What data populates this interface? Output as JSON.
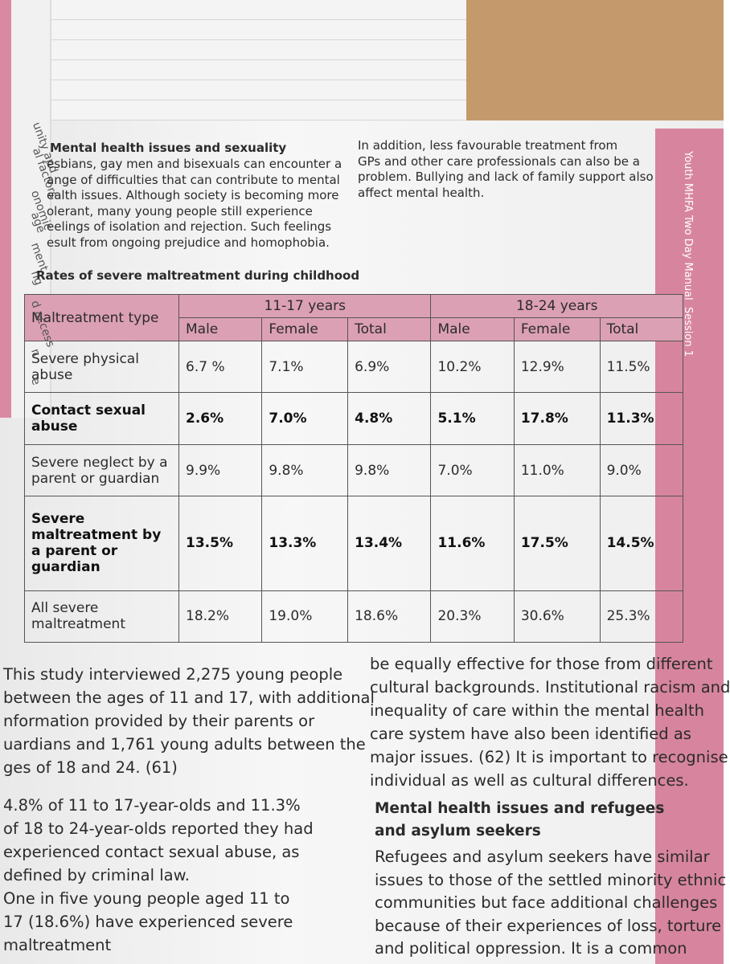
{
  "side_tab": {
    "title": "Youth MHFA Two Day Manual",
    "session": "Session 1"
  },
  "left_page": {
    "fragments": [
      "unity and",
      "al factors",
      "onomic",
      "age",
      "ment",
      "ng",
      "d access",
      "n",
      "e"
    ]
  },
  "intro": {
    "heading": "Mental health issues and sexuality",
    "left_lines": [
      "esbians, gay men and bisexuals can encounter a",
      "ange of difficulties that can contribute to mental",
      "ealth issues. Although society is becoming more",
      "olerant, many young people still experience",
      "eelings of isolation and rejection. Such feelings",
      "esult from ongoing prejudice and homophobia."
    ],
    "right_lines": [
      "In addition, less favourable treatment from",
      "GPs and other care professionals can also be a",
      "problem. Bullying and lack of family support also",
      "affect mental health."
    ]
  },
  "table": {
    "title": "Rates of severe maltreatment during childhood",
    "type_header": "Maltreatment type",
    "groups": [
      "11-17 years",
      "18-24 years"
    ],
    "columns": [
      "Male",
      "Female",
      "Total",
      "Male",
      "Female",
      "Total"
    ],
    "rows": [
      [
        "Severe physical abuse",
        "6.7 %",
        "7.1%",
        "6.9%",
        "10.2%",
        "12.9%",
        "11.5%"
      ],
      [
        "Contact sexual abuse",
        "2.6%",
        "7.0%",
        "4.8%",
        "5.1%",
        "17.8%",
        "11.3%"
      ],
      [
        "Severe neglect by a parent or guardian",
        "9.9%",
        "9.8%",
        "9.8%",
        "7.0%",
        "11.0%",
        "9.0%"
      ],
      [
        "Severe maltreatment by a parent or guardian",
        "13.5%",
        "13.3%",
        "13.4%",
        "11.6%",
        "17.5%",
        "14.5%"
      ],
      [
        "All severe maltreatment",
        "18.2%",
        "19.0%",
        "18.6%",
        "20.3%",
        "30.6%",
        "25.3%"
      ]
    ]
  },
  "body": {
    "left_paragraphs": [
      [
        "This study interviewed 2,275 young people",
        "between the ages of 11 and 17, with additional",
        "nformation provided by their parents or",
        "uardians and 1,761 young adults between the",
        "ges of 18 and 24. (61)"
      ],
      [
        "4.8% of 11 to 17-year-olds and 11.3%",
        "of 18 to 24-year-olds reported they had",
        "experienced contact sexual abuse, as",
        "defined by criminal law.",
        "One in five young people aged 11 to",
        "17 (18.6%) have experienced severe",
        "maltreatment"
      ]
    ],
    "right_lines": [
      "be equally effective for those from different",
      "cultural backgrounds. Institutional racism and",
      "inequality of care within the mental health",
      "care system have also been identified as",
      "major issues. (62) It is important to recognise",
      "individual as well as cultural differences."
    ],
    "heading": [
      "Mental health issues and refugees",
      "and asylum seekers"
    ],
    "heading_lines": [
      "Refugees and asylum seekers have similar",
      "issues to those of the settled minority ethnic",
      "communities but face additional challenges",
      "because of their experiences of loss, torture",
      "and political oppression. It is a common"
    ]
  }
}
